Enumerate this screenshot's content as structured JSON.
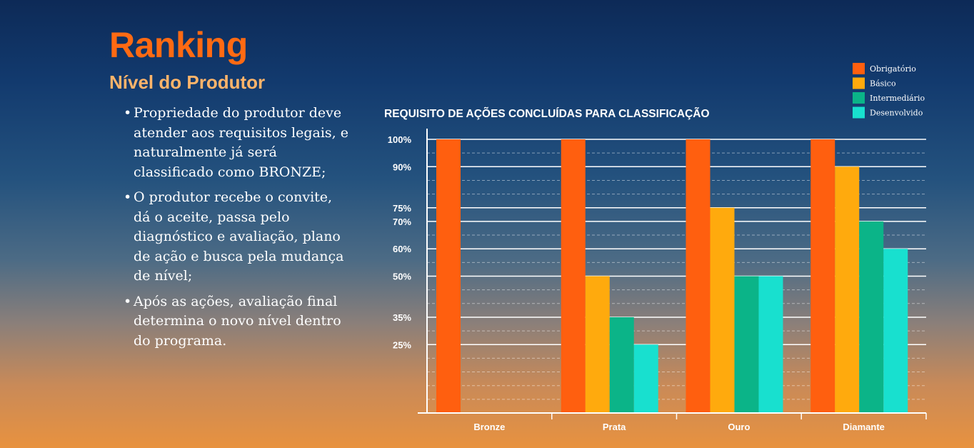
{
  "heading": {
    "title": "Ranking",
    "subtitle": "Nível do Produtor"
  },
  "bullets": [
    "Propriedade do produtor deve atender aos requisitos legais, e naturalmente já será classificado como BRONZE;",
    "O produtor recebe o convite, dá o aceite, passa pelo diagnóstico e avaliação, plano de ação e busca pela mudança de nível;",
    "Após as ações, avaliação final determina o novo nível dentro do programa."
  ],
  "chart_data": {
    "type": "bar",
    "title": "REQUISITO DE AÇÕES CONCLUÍDAS PARA CLASSIFICAÇÃO",
    "categories": [
      "Bronze",
      "Prata",
      "Ouro",
      "Diamante"
    ],
    "series": [
      {
        "name": "Obrigatório",
        "color": "#ff5f0f",
        "values": [
          100,
          100,
          100,
          100
        ]
      },
      {
        "name": "Básico",
        "color": "#ffaa0d",
        "values": [
          null,
          50,
          75,
          90
        ]
      },
      {
        "name": "Intermediário",
        "color": "#0bb488",
        "values": [
          null,
          35,
          50,
          70
        ]
      },
      {
        "name": "Desenvolvido",
        "color": "#18e0cf",
        "values": [
          null,
          25,
          50,
          60
        ]
      }
    ],
    "ytick_labels": [
      "100%",
      "90%",
      "75%",
      "70%",
      "60%",
      "50%",
      "35%",
      "25%"
    ],
    "ytick_values": [
      100,
      90,
      75,
      70,
      60,
      50,
      35,
      25
    ],
    "ylim": [
      0,
      100
    ],
    "legend": "top-right",
    "grid": true
  }
}
